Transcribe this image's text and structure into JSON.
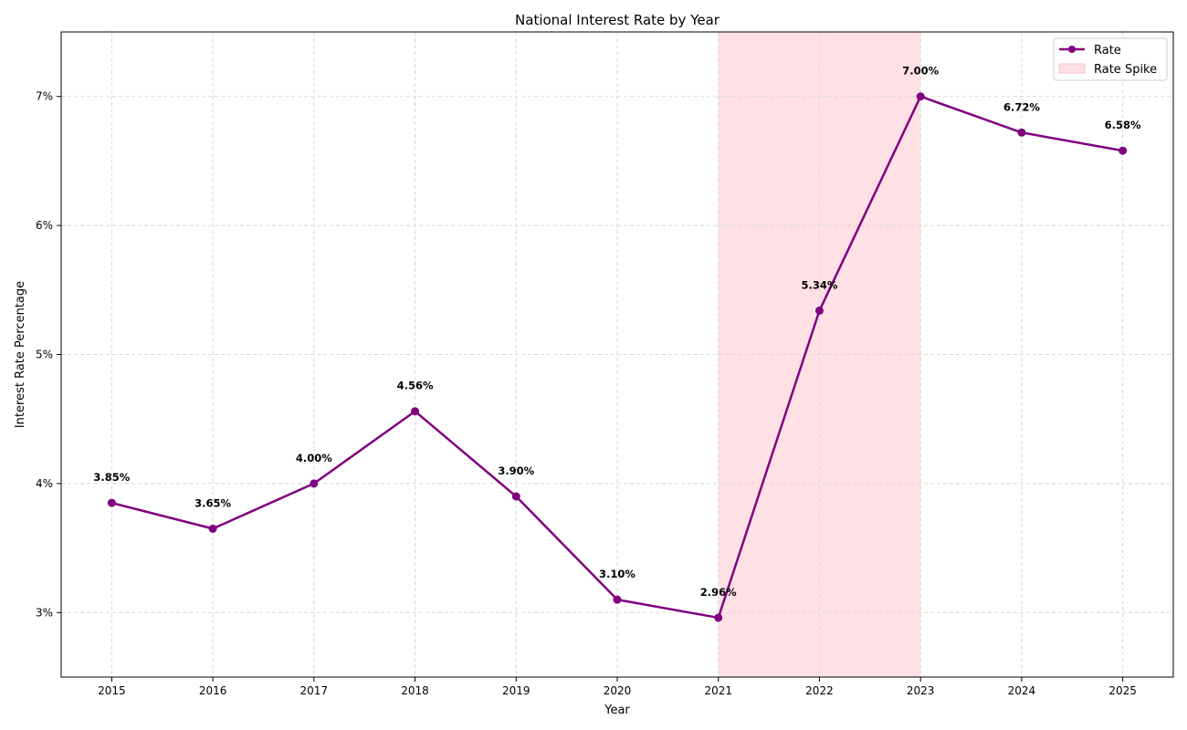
{
  "chart_data": {
    "type": "line",
    "title": "National Interest Rate by Year",
    "xlabel": "Year",
    "ylabel": "Interest Rate Percentage",
    "x": [
      2015,
      2016,
      2017,
      2018,
      2019,
      2020,
      2021,
      2022,
      2023,
      2024,
      2025
    ],
    "x_tick_labels": [
      "2015",
      "2016",
      "2017",
      "2018",
      "2019",
      "2020",
      "2021",
      "2022",
      "2023",
      "2024",
      "2025"
    ],
    "xlim": [
      2014.5,
      2025.5
    ],
    "ylim": [
      2.5,
      7.5
    ],
    "y_ticks": [
      3,
      4,
      5,
      6,
      7
    ],
    "y_tick_labels": [
      "3%",
      "4%",
      "5%",
      "6%",
      "7%"
    ],
    "grid": true,
    "legend_position": "top-right",
    "series": [
      {
        "name": "Rate",
        "color": "#800080",
        "values": [
          3.85,
          3.65,
          4.0,
          4.56,
          3.9,
          3.1,
          2.96,
          5.34,
          7.0,
          6.72,
          6.58
        ],
        "data_labels": [
          "3.85%",
          "3.65%",
          "4.00%",
          "4.56%",
          "3.90%",
          "3.10%",
          "2.96%",
          "5.34%",
          "7.00%",
          "6.72%",
          "6.58%"
        ]
      }
    ],
    "shaded_region": {
      "name": "Rate Spike",
      "x_start": 2021,
      "x_end": 2023,
      "color": "#ffe0e4"
    }
  }
}
